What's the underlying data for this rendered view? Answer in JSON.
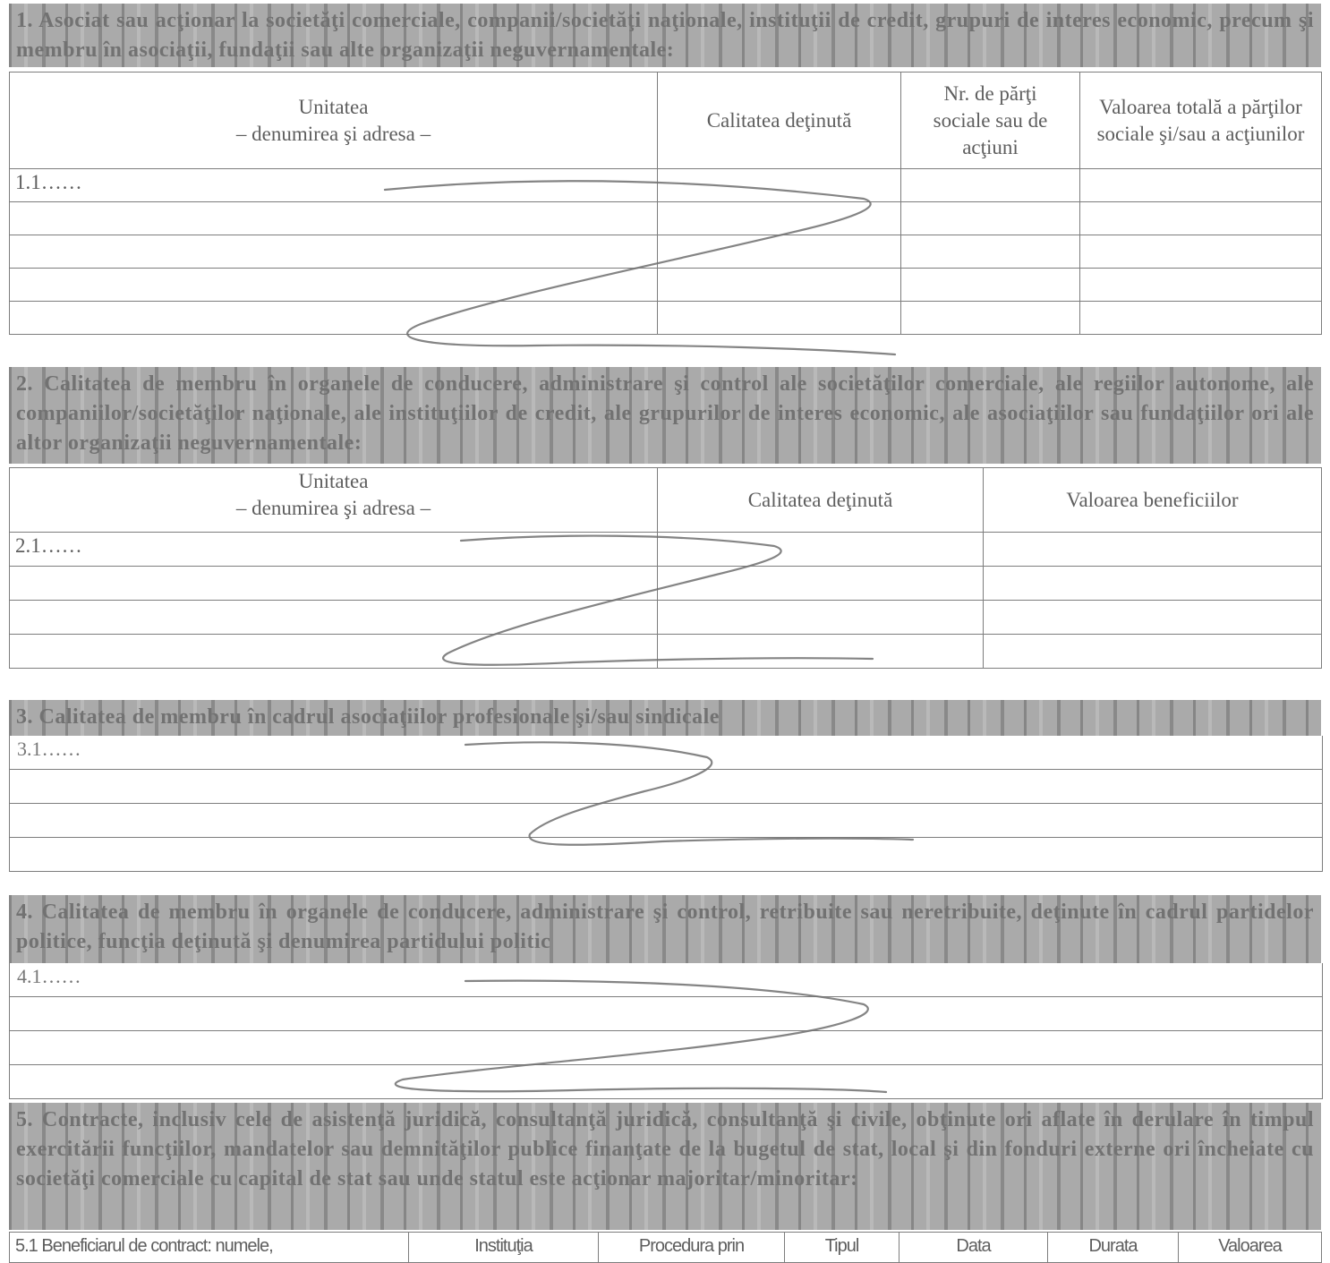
{
  "section1": {
    "title": "1. Asociat sau acţionar la societăţi comerciale, companii/societăţi naţionale, instituţii de credit, grupuri de interes economic, precum şi membru în asociaţii, fundaţii sau alte organizaţii neguvernamentale:",
    "col_unit_1": "Unitatea",
    "col_unit_2": "– denumirea şi adresa –",
    "col_quality": "Calitatea deţinută",
    "col_shares": "Nr. de părţi sociale sau de acţiuni",
    "col_value": "Valoarea totală a părţilor sociale şi/sau a acţiunilor",
    "first_row": "1.1……"
  },
  "section2": {
    "title": "2. Calitatea de membru în organele de conducere, administrare şi control ale societăţilor comerciale, ale regiilor autonome, ale companiilor/societăţilor naţionale, ale instituţiilor de credit, ale grupurilor de interes economic, ale asociaţiilor sau fundaţiilor ori ale altor organizaţii neguvernamentale:",
    "col_unit_1": "Unitatea",
    "col_unit_2": "– denumirea şi adresa –",
    "col_quality": "Calitatea deţinută",
    "col_benefits": "Valoarea beneficiilor",
    "first_row": "2.1……"
  },
  "section3": {
    "title": "3. Calitatea de membru în cadrul asociaţiilor profesionale şi/sau sindicale",
    "first_row": "3.1……"
  },
  "section4": {
    "title": "4. Calitatea de membru în organele de conducere, administrare şi control, retribuite sau neretribuite, deţinute în cadrul partidelor politice, funcţia deţinută şi denumirea partidului politic",
    "first_row": "4.1……"
  },
  "section5": {
    "title": "5. Contracte, inclusiv cele de asistenţă juridică, consultanţă juridică, consultanţă şi civile, obţinute ori aflate în derulare în timpul exercitării funcţiilor, mandatelor sau demnităţilor publice finanţate de la bugetul de stat, local şi din fonduri externe ori încheiate cu societăţi comerciale cu capital de stat sau unde statul este acţionar majoritar/minoritar:",
    "col_beneficiary": "5.1 Beneficiarul de contract: numele,",
    "col_institution": "Instituţia",
    "col_procedure": "Procedura prin",
    "col_type": "Tipul",
    "col_date": "Data",
    "col_duration": "Durata",
    "col_value": "Valoarea"
  },
  "colors": {
    "band": "#aaaaaa",
    "ink": "#5a5a5a"
  }
}
